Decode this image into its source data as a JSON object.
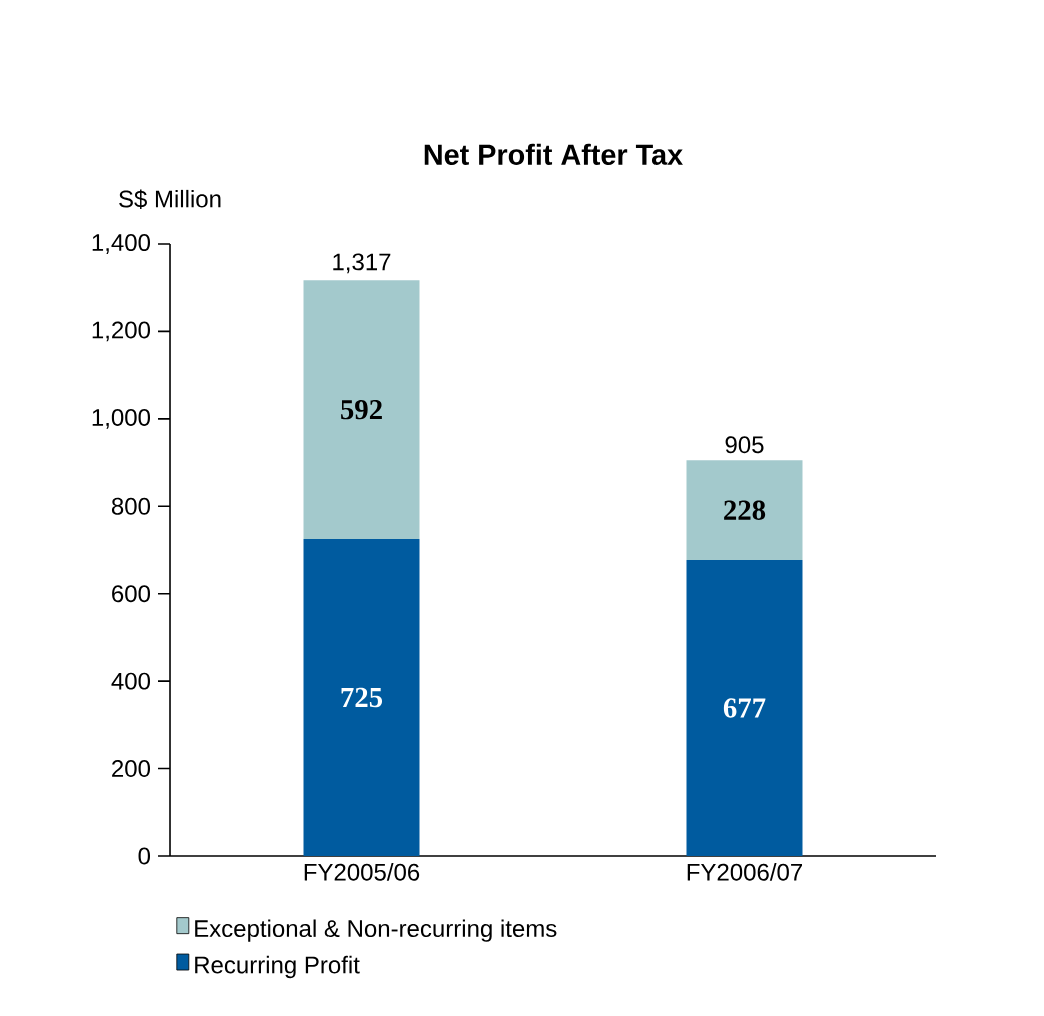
{
  "chart_data": {
    "type": "bar",
    "stacked": true,
    "title": "Net Profit After Tax",
    "ylabel": "S$ Million",
    "categories": [
      "FY2005/06",
      "FY2006/07"
    ],
    "series": [
      {
        "name": "Recurring Profit",
        "color": "#005b9f",
        "values": [
          725,
          677
        ]
      },
      {
        "name": "Exceptional & Non-recurring items",
        "color": "#a3c9cc",
        "values": [
          592,
          228
        ]
      }
    ],
    "ylim": [
      0,
      1400
    ],
    "yticks": [
      0,
      200,
      400,
      600,
      800,
      {
        "value": 1000,
        "label": "1,000"
      },
      {
        "value": 1200,
        "label": "1,200"
      },
      {
        "value": 1400,
        "label": "1,400"
      }
    ],
    "data_labels": true,
    "totals": [
      "1,317",
      "905"
    ],
    "legend": "bottom",
    "grid": false
  }
}
